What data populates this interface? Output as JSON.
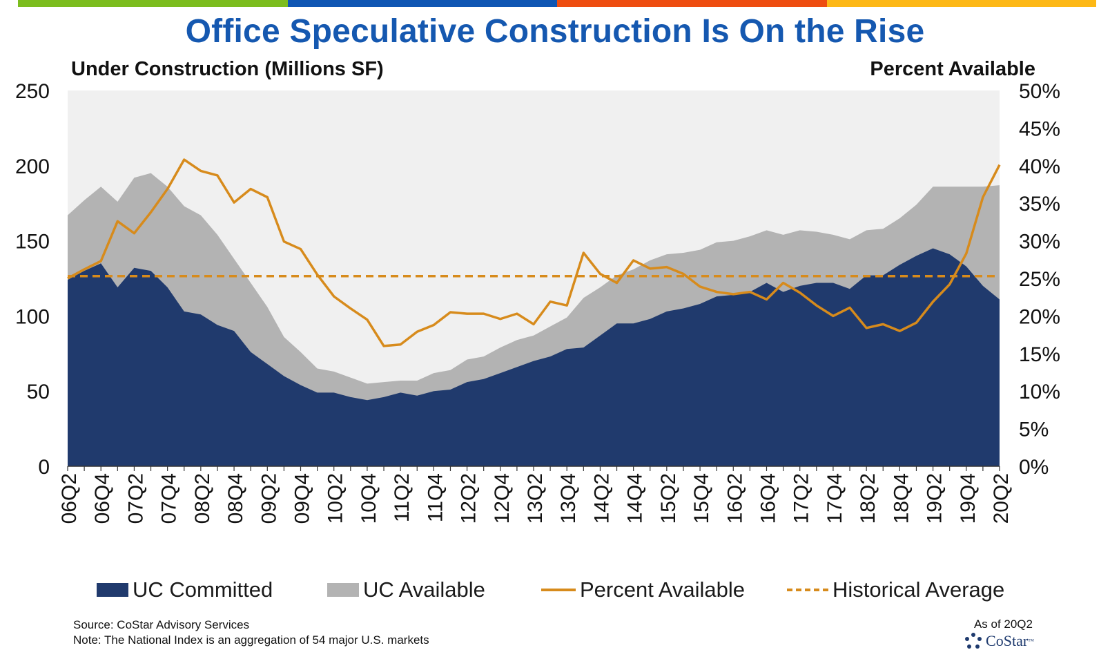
{
  "title": "Office Speculative Construction Is On the Rise",
  "left_axis_title": "Under Construction (Millions SF)",
  "right_axis_title": "Percent Available",
  "top_bar_colors": [
    "#7cbd1e",
    "#0f56b3",
    "#ee4d10",
    "#fdb816"
  ],
  "legend": [
    {
      "label": "UC Committed",
      "kind": "area",
      "color": "#203a6d"
    },
    {
      "label": "UC Available",
      "kind": "area",
      "color": "#b3b3b3"
    },
    {
      "label": "Percent Available",
      "kind": "line",
      "color": "#d78b1c"
    },
    {
      "label": "Historical Average",
      "kind": "dashed",
      "color": "#d78b1c"
    }
  ],
  "source": "Source: CoStar Advisory Services",
  "note": "Note: The National Index is an aggregation of 54 major U.S. markets",
  "as_of": "As of 20Q2",
  "brand": "CoStar",
  "brand_mark": "™",
  "chart_data": {
    "type": "area",
    "x_labels": [
      "06Q2",
      "06Q3",
      "06Q4",
      "07Q1",
      "07Q2",
      "07Q3",
      "07Q4",
      "08Q1",
      "08Q2",
      "08Q3",
      "08Q4",
      "09Q1",
      "09Q2",
      "09Q3",
      "09Q4",
      "10Q1",
      "10Q2",
      "10Q3",
      "10Q4",
      "11Q1",
      "11Q2",
      "11Q3",
      "11Q4",
      "12Q1",
      "12Q2",
      "12Q3",
      "12Q4",
      "13Q1",
      "13Q2",
      "13Q3",
      "13Q4",
      "14Q1",
      "14Q2",
      "14Q3",
      "14Q4",
      "15Q1",
      "15Q2",
      "15Q3",
      "15Q4",
      "16Q1",
      "16Q2",
      "16Q3",
      "16Q4",
      "17Q1",
      "17Q2",
      "17Q3",
      "17Q4",
      "18Q1",
      "18Q2",
      "18Q3",
      "18Q4",
      "19Q1",
      "19Q2",
      "19Q3",
      "19Q4",
      "20Q1",
      "20Q2"
    ],
    "tick_labels": [
      "06Q2",
      "06Q4",
      "07Q2",
      "07Q4",
      "08Q2",
      "08Q4",
      "09Q2",
      "09Q4",
      "10Q2",
      "10Q4",
      "11Q2",
      "11Q4",
      "12Q2",
      "12Q4",
      "13Q2",
      "13Q4",
      "14Q2",
      "14Q4",
      "15Q2",
      "15Q4",
      "16Q2",
      "16Q4",
      "17Q2",
      "17Q4",
      "18Q2",
      "18Q4",
      "19Q2",
      "19Q4",
      "20Q2"
    ],
    "y_left": {
      "min": 0,
      "max": 250,
      "ticks": [
        "0",
        "50",
        "100",
        "150",
        "200",
        "250"
      ]
    },
    "y_right": {
      "min": 0,
      "max": 50,
      "ticks": [
        "0%",
        "5%",
        "10%",
        "15%",
        "20%",
        "25%",
        "30%",
        "35%",
        "40%",
        "45%",
        "50%"
      ]
    },
    "grid": false,
    "legend_position": "bottom",
    "series": [
      {
        "name": "UC Committed",
        "type": "area",
        "axis": "left",
        "color": "#203a6d",
        "values": [
          124,
          130,
          135,
          119,
          132,
          130,
          119,
          103,
          101,
          94,
          90,
          76,
          68,
          60,
          54,
          49,
          49,
          46,
          44,
          46,
          49,
          47,
          50,
          51,
          56,
          58,
          62,
          66,
          70,
          73,
          78,
          79,
          87,
          95,
          95,
          98,
          103,
          105,
          108,
          113,
          114,
          116,
          122,
          116,
          120,
          122,
          122,
          118,
          127,
          127,
          134,
          140,
          145,
          141,
          133,
          120,
          111
        ]
      },
      {
        "name": "UC Available",
        "type": "area",
        "axis": "left",
        "color": "#b3b3b3",
        "values": [
          43,
          47,
          51,
          57,
          60,
          65,
          67,
          70,
          66,
          60,
          48,
          46,
          38,
          26,
          22,
          16,
          14,
          13,
          11,
          10,
          8,
          10,
          12,
          13,
          15,
          15,
          17,
          18,
          17,
          20,
          21,
          33,
          32,
          32,
          36,
          39,
          38,
          37,
          36,
          36,
          36,
          37,
          35,
          38,
          37,
          34,
          32,
          33,
          30,
          31,
          31,
          34,
          41,
          45,
          53,
          66,
          76
        ]
      },
      {
        "name": "Percent Available",
        "type": "line",
        "axis": "right",
        "color": "#d78b1c",
        "values": [
          25.0,
          26.2,
          27.3,
          32.6,
          31.0,
          33.8,
          36.9,
          40.8,
          39.3,
          38.7,
          35.1,
          36.9,
          35.8,
          29.9,
          28.9,
          25.5,
          22.6,
          21.0,
          19.5,
          16.0,
          16.2,
          17.9,
          18.8,
          20.5,
          20.3,
          20.3,
          19.6,
          20.3,
          18.9,
          21.9,
          21.4,
          28.4,
          25.6,
          24.4,
          27.4,
          26.3,
          26.5,
          25.6,
          23.9,
          23.2,
          22.9,
          23.2,
          22.2,
          24.4,
          23.1,
          21.4,
          20.0,
          21.1,
          18.4,
          18.9,
          18.0,
          19.1,
          21.9,
          24.2,
          28.3,
          35.8,
          40.1
        ]
      },
      {
        "name": "Historical Average",
        "type": "line",
        "style": "dashed",
        "axis": "right",
        "color": "#d78b1c",
        "values": [
          25.3
        ]
      }
    ]
  }
}
